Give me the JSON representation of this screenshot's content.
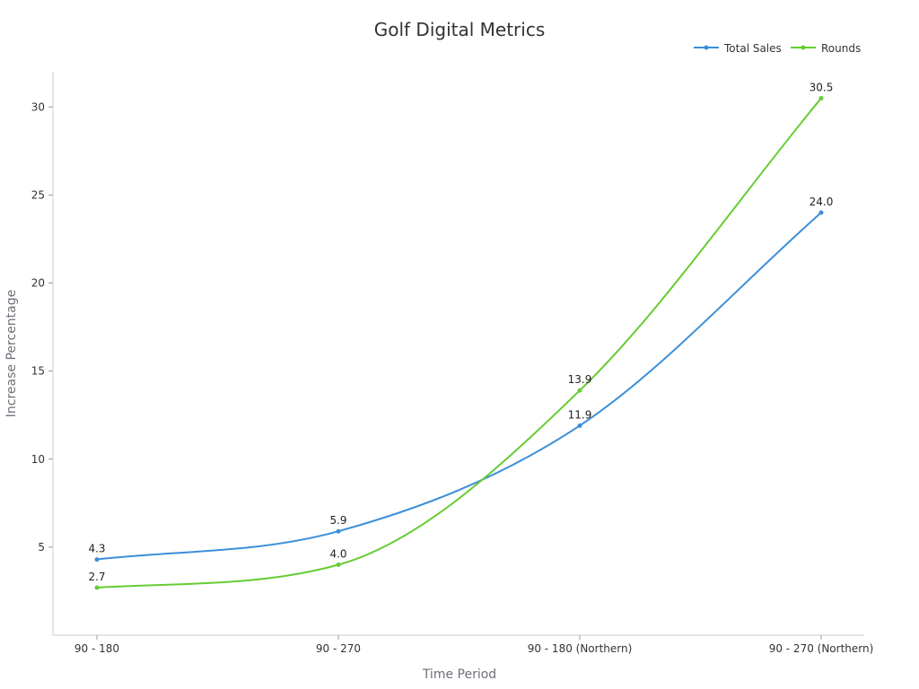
{
  "chart_data": {
    "type": "line",
    "title": "Golf Digital Metrics",
    "xlabel": "Time Period",
    "ylabel": "Increase Percentage",
    "categories": [
      "90 - 180",
      "90 - 270",
      "90 - 180 (Northern)",
      "90 - 270 (Northern)"
    ],
    "series": [
      {
        "name": "Total Sales",
        "color": "#3b8fd9",
        "values": [
          4.3,
          5.9,
          11.9,
          24.0
        ]
      },
      {
        "name": "Rounds",
        "color": "#66cc33",
        "values": [
          2.7,
          4.0,
          13.9,
          30.5
        ]
      }
    ],
    "ylim": [
      0,
      32
    ],
    "yticks": [
      5,
      10,
      15,
      20,
      25,
      30
    ],
    "grid": false,
    "legend": "top-right",
    "smooth": true
  }
}
